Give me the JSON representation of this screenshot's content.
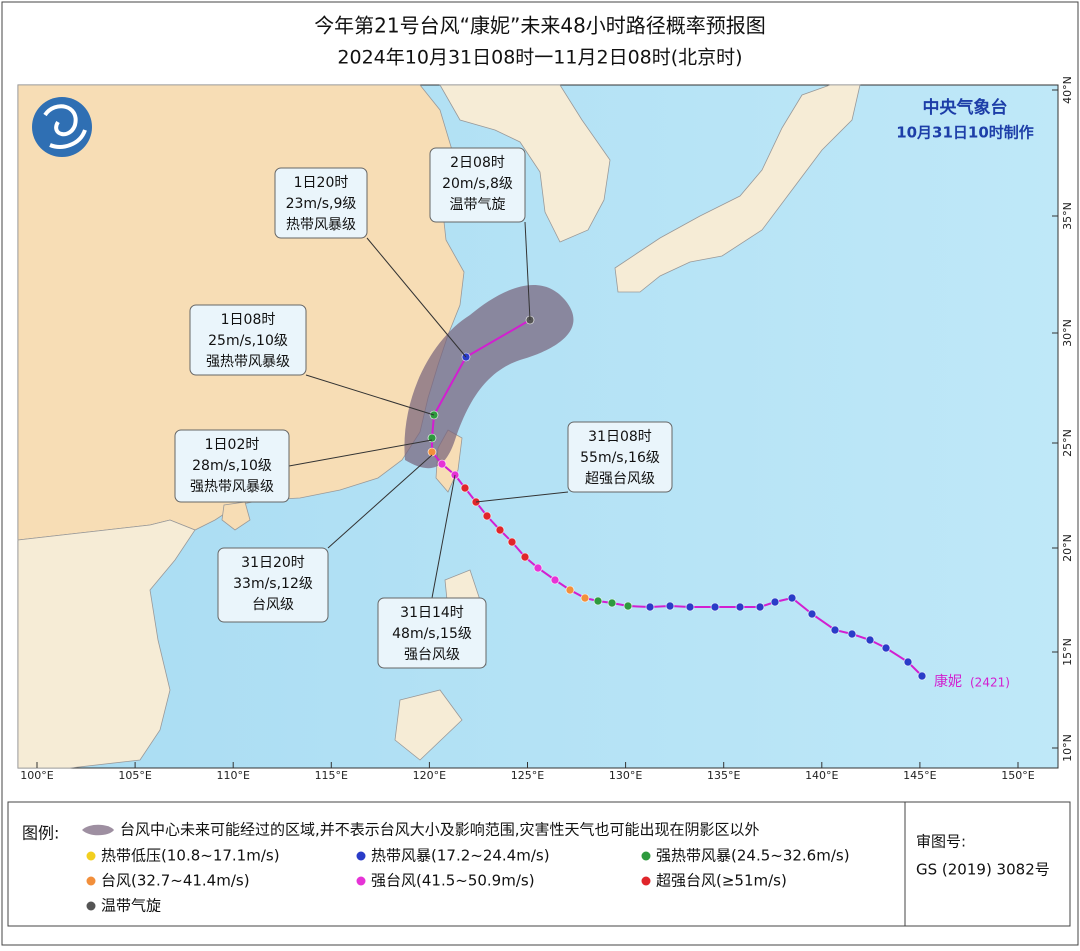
{
  "header": {
    "title": "今年第21号台风“康妮”未来48小时路径概率预报图",
    "subtitle": "2024年10月31日08时一11月2日08时(北京时)"
  },
  "map": {
    "agency": "中央气象台",
    "issued": "10月31日10时制作",
    "storm_name": "康妮",
    "storm_id": "(2421)",
    "lon_labels": [
      "100°E",
      "105°E",
      "110°E",
      "115°E",
      "120°E",
      "125°E",
      "130°E",
      "135°E",
      "140°E",
      "145°E",
      "150°E"
    ],
    "lat_labels": [
      "10°N",
      "15°N",
      "20°N",
      "25°N",
      "30°N",
      "35°N",
      "40°N"
    ],
    "callouts": [
      {
        "lines": [
          "2日08时",
          "20m/s,8级",
          "温带气旋"
        ]
      },
      {
        "lines": [
          "1日20时",
          "23m/s,9级",
          "热带风暴级"
        ]
      },
      {
        "lines": [
          "1日08时",
          "25m/s,10级",
          "强热带风暴级"
        ]
      },
      {
        "lines": [
          "1日02时",
          "28m/s,10级",
          "强热带风暴级"
        ]
      },
      {
        "lines": [
          "31日20时",
          "33m/s,12级",
          "台风级"
        ]
      },
      {
        "lines": [
          "31日14时",
          "48m/s,15级",
          "强台风级"
        ]
      },
      {
        "lines": [
          "31日08时",
          "55m/s,16级",
          "超强台风级"
        ]
      }
    ]
  },
  "legend": {
    "heading": "图例:",
    "cone": "台风中心未来可能经过的区域,并不表示台风大小及影响范围,灾害性天气也可能出现在阴影区以外",
    "items": [
      {
        "label": "热带低压(10.8~17.1m/s)",
        "color": "#f2cf1f"
      },
      {
        "label": "热带风暴(17.2~24.4m/s)",
        "color": "#2a3cc8"
      },
      {
        "label": "强热带风暴(24.5~32.6m/s)",
        "color": "#2e9a3e"
      },
      {
        "label": "台风(32.7~41.4m/s)",
        "color": "#f28f3b"
      },
      {
        "label": "强台风(41.5~50.9m/s)",
        "color": "#e633d6"
      },
      {
        "label": "超强台风(≥51m/s)",
        "color": "#e0262b"
      },
      {
        "label": "温带气旋",
        "color": "#555555"
      }
    ]
  },
  "approval": {
    "heading": "审图号:",
    "number": "GS (2019) 3082号"
  }
}
